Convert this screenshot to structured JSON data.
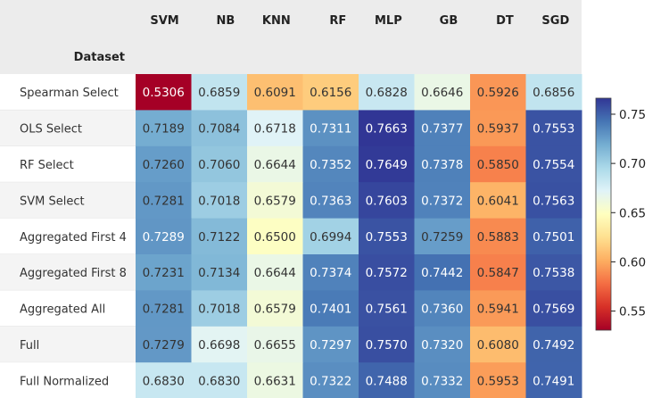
{
  "chart_data": {
    "type": "heatmap",
    "index_name": "Dataset",
    "columns": [
      "SVM",
      "NB",
      "KNN",
      "RF",
      "MLP",
      "GB",
      "DT",
      "SGD"
    ],
    "rows": [
      "Spearman Select",
      "OLS Select",
      "RF Select",
      "SVM Select",
      "Aggregated First 4",
      "Aggregated First 8",
      "Aggregated All",
      "Full",
      "Full Normalized"
    ],
    "values": [
      [
        0.5306,
        0.6859,
        0.6091,
        0.6156,
        0.6828,
        0.6646,
        0.5926,
        0.6856
      ],
      [
        0.7189,
        0.7084,
        0.6718,
        0.7311,
        0.7663,
        0.7377,
        0.5937,
        0.7553
      ],
      [
        0.726,
        0.706,
        0.6644,
        0.7352,
        0.7649,
        0.7378,
        0.585,
        0.7554
      ],
      [
        0.7281,
        0.7018,
        0.6579,
        0.7363,
        0.7603,
        0.7372,
        0.6041,
        0.7563
      ],
      [
        0.7289,
        0.7122,
        0.65,
        0.6994,
        0.7553,
        0.7259,
        0.5883,
        0.7501
      ],
      [
        0.7231,
        0.7134,
        0.6644,
        0.7374,
        0.7572,
        0.7442,
        0.5847,
        0.7538
      ],
      [
        0.7281,
        0.7018,
        0.6579,
        0.7401,
        0.7561,
        0.736,
        0.5941,
        0.7569
      ],
      [
        0.7279,
        0.6698,
        0.6655,
        0.7297,
        0.757,
        0.732,
        0.608,
        0.7492
      ],
      [
        0.683,
        0.683,
        0.6631,
        0.7322,
        0.7488,
        0.7332,
        0.5953,
        0.7491
      ]
    ],
    "cell_labels": [
      [
        "0.5306",
        "0.6859",
        "0.6091",
        "0.6156",
        "0.6828",
        "0.6646",
        "0.5926",
        "0.6856"
      ],
      [
        "0.7189",
        "0.7084",
        "0.6718",
        "0.7311",
        "0.7663",
        "0.7377",
        "0.5937",
        "0.7553"
      ],
      [
        "0.7260",
        "0.7060",
        "0.6644",
        "0.7352",
        "0.7649",
        "0.7378",
        "0.5850",
        "0.7554"
      ],
      [
        "0.7281",
        "0.7018",
        "0.6579",
        "0.7363",
        "0.7603",
        "0.7372",
        "0.6041",
        "0.7563"
      ],
      [
        "0.7289",
        "0.7122",
        "0.6500",
        "0.6994",
        "0.7553",
        "0.7259",
        "0.5883",
        "0.7501"
      ],
      [
        "0.7231",
        "0.7134",
        "0.6644",
        "0.7374",
        "0.7572",
        "0.7442",
        "0.5847",
        "0.7538"
      ],
      [
        "0.7281",
        "0.7018",
        "0.6579",
        "0.7401",
        "0.7561",
        "0.7360",
        "0.5941",
        "0.7569"
      ],
      [
        "0.7279",
        "0.6698",
        "0.6655",
        "0.7297",
        "0.7570",
        "0.7320",
        "0.6080",
        "0.7492"
      ],
      [
        "0.6830",
        "0.6830",
        "0.6631",
        "0.7322",
        "0.7488",
        "0.7332",
        "0.5953",
        "0.7491"
      ]
    ],
    "colormap": "RdYlBu",
    "color_range": [
      0.5306,
      0.7663
    ],
    "colorbar_ticks": [
      "0.55",
      "0.60",
      "0.65",
      "0.70",
      "0.75"
    ],
    "colorbar_tick_values": [
      0.55,
      0.6,
      0.65,
      0.7,
      0.75
    ],
    "header_background": "#ececec",
    "colors": {
      "gradient_stops": [
        "#a50026",
        "#d73027",
        "#f46d43",
        "#fdae61",
        "#fee090",
        "#ffffbf",
        "#e0f3f8",
        "#abd9e9",
        "#74add1",
        "#4575b4",
        "#313695"
      ]
    }
  }
}
